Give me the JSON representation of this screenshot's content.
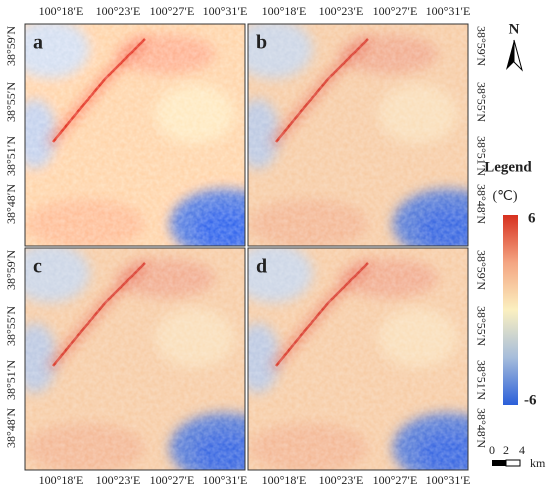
{
  "panels": [
    {
      "label": "a"
    },
    {
      "label": "b"
    },
    {
      "label": "c"
    },
    {
      "label": "d"
    }
  ],
  "lon_ticks": [
    "100°18′E",
    "100°23′E",
    "100°27′E",
    "100°31′E"
  ],
  "lat_ticks": [
    "38°59′N",
    "38°55′N",
    "38°51′N",
    "38°48′N"
  ],
  "north": "N",
  "legend": {
    "title": "Legend",
    "unit": "(℃)",
    "max": 6,
    "min": -6
  },
  "scale": {
    "ticks": [
      0,
      2,
      4
    ],
    "unit": "km"
  }
}
